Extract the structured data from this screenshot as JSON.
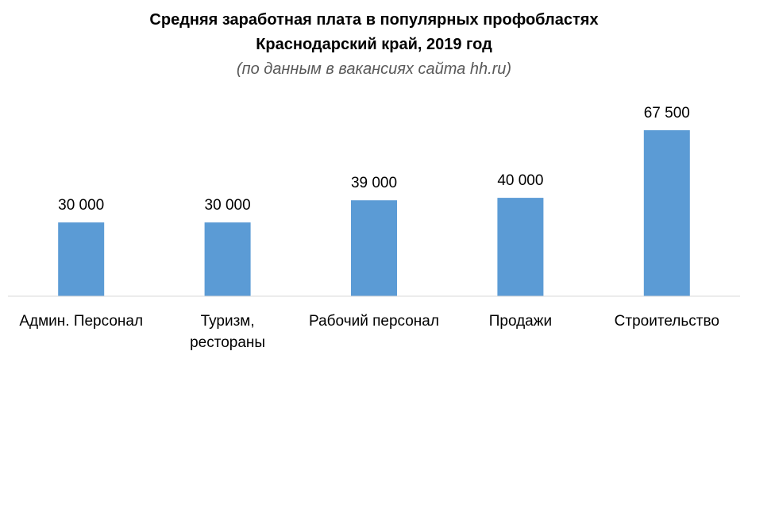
{
  "chart_data": {
    "type": "bar",
    "title": [
      "Средняя заработная плата в популярных профобластях",
      "Краснодарский край, 2019 год"
    ],
    "subtitle": "(по данным в вакансиях сайта hh.ru)",
    "categories": [
      [
        "Админ. Персонал"
      ],
      [
        "Туризм,",
        "рестораны"
      ],
      [
        "Рабочий персонал"
      ],
      [
        "Продажи"
      ],
      [
        "Строительство"
      ]
    ],
    "values": [
      30000,
      30000,
      39000,
      40000,
      67500
    ],
    "data_labels": [
      "30 000",
      "30 000",
      "39 000",
      "40 000",
      "67 500"
    ],
    "xlabel": "",
    "ylabel": "",
    "ylim": [
      0,
      67500
    ],
    "grid": false,
    "legend": "none",
    "bar_color": "#5b9bd5",
    "axis_color": "#d9d9d9"
  }
}
